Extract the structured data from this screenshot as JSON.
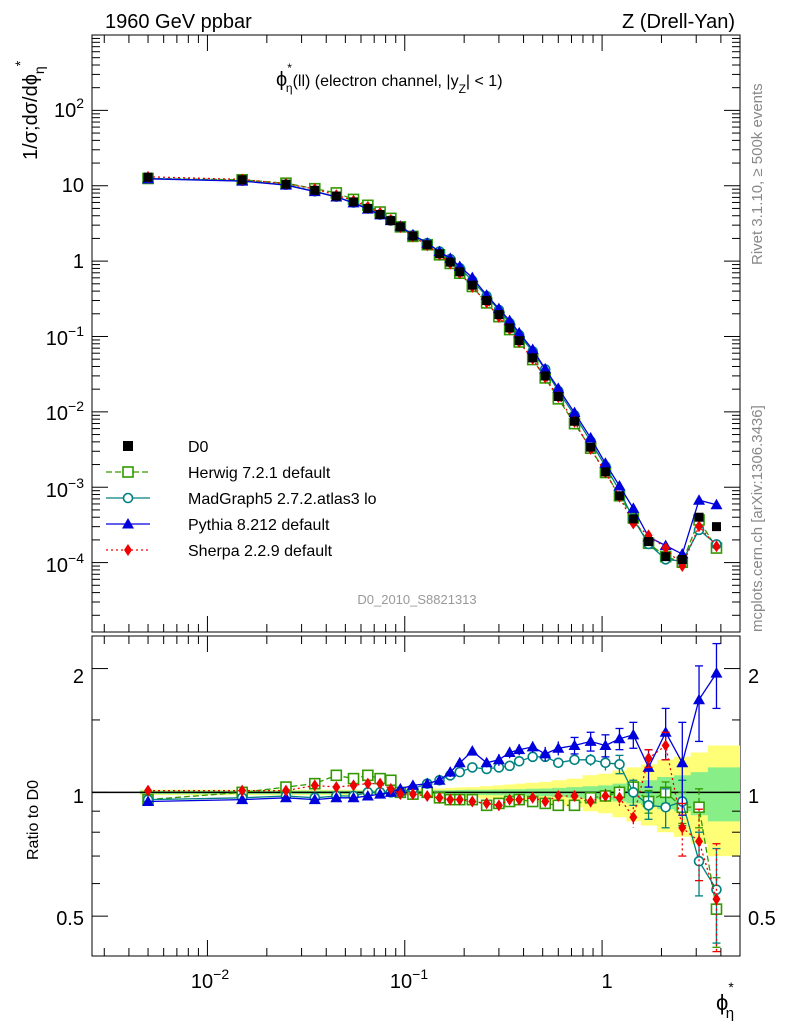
{
  "header": {
    "left": "1960 GeV ppbar",
    "right": "Z (Drell-Yan)"
  },
  "side_labels": {
    "rivet": "Rivet 3.1.10, ≥ 500k events",
    "mcplots": "mcplots.cern.ch [arXiv:1306.3436]"
  },
  "plot_label": {
    "phi": "ϕ",
    "star": "*",
    "eta": "η",
    "text1": "(ll) (electron channel, |y",
    "z": "Z",
    "text2": "| < 1)"
  },
  "ylabel_top": {
    "main": "1/σ;dσ/dϕ",
    "sub": "η",
    "star": "*"
  },
  "ylabel_bottom": "Ratio to D0",
  "xlabel": {
    "phi": "ϕ",
    "star": "*",
    "sub": "η"
  },
  "watermark": "D0_2010_S8821313",
  "ticks": {
    "top_y": [
      {
        "base": "10",
        "exp": "2"
      },
      {
        "text": "10"
      },
      {
        "text": "1"
      },
      {
        "base": "10",
        "exp": "−1"
      },
      {
        "base": "10",
        "exp": "−2"
      },
      {
        "base": "10",
        "exp": "−3"
      },
      {
        "base": "10",
        "exp": "−4"
      }
    ],
    "x": [
      {
        "base": "10",
        "exp": "−2"
      },
      {
        "base": "10",
        "exp": "−1"
      },
      {
        "text": "1"
      }
    ],
    "ratio_y": [
      "2",
      "1",
      "0.5"
    ]
  },
  "chart_data": {
    "type": "line",
    "x_scale": "log",
    "y_scale": "log",
    "xlim": [
      0.0026,
      5.0
    ],
    "ylim": [
      1.2e-05,
      1000
    ],
    "ratio_ylim": [
      0.4,
      2.4
    ],
    "x": [
      0.005,
      0.015,
      0.025,
      0.035,
      0.045,
      0.055,
      0.065,
      0.075,
      0.085,
      0.095,
      0.11,
      0.13,
      0.15,
      0.17,
      0.19,
      0.22,
      0.26,
      0.3,
      0.34,
      0.38,
      0.445,
      0.515,
      0.6,
      0.725,
      0.875,
      1.04,
      1.225,
      1.44,
      1.72,
      2.1,
      2.55,
      3.1,
      3.8
    ],
    "data_series": {
      "name": "D0",
      "color": "#000000",
      "values": [
        13.0,
        12.0,
        10.5,
        8.7,
        7.3,
        6.1,
        5.0,
        4.15,
        3.45,
        2.85,
        2.15,
        1.65,
        1.25,
        0.97,
        0.72,
        0.48,
        0.3,
        0.195,
        0.13,
        0.088,
        0.052,
        0.03,
        0.016,
        0.0075,
        0.0034,
        0.0016,
        0.00077,
        0.00038,
        0.00019,
        0.00012,
        0.00011,
        0.0004,
        0.0003
      ]
    },
    "band": {
      "stat": [
        0.01,
        0.01,
        0.01,
        0.01,
        0.01,
        0.01,
        0.01,
        0.01,
        0.01,
        0.01,
        0.012,
        0.012,
        0.012,
        0.012,
        0.014,
        0.015,
        0.015,
        0.016,
        0.018,
        0.018,
        0.02,
        0.022,
        0.025,
        0.03,
        0.035,
        0.04,
        0.05,
        0.06,
        0.07,
        0.09,
        0.1,
        0.12,
        0.15
      ],
      "total": [
        0.015,
        0.015,
        0.015,
        0.015,
        0.015,
        0.015,
        0.015,
        0.015,
        0.015,
        0.015,
        0.018,
        0.02,
        0.022,
        0.025,
        0.028,
        0.03,
        0.035,
        0.04,
        0.045,
        0.05,
        0.055,
        0.06,
        0.07,
        0.08,
        0.1,
        0.11,
        0.13,
        0.15,
        0.17,
        0.2,
        0.22,
        0.25,
        0.3
      ]
    },
    "series": [
      {
        "name": "Herwig 7.2.1 default",
        "color": "#339900",
        "marker": "open-square",
        "dash": "6,3",
        "ratio": [
          0.96,
          1.0,
          1.03,
          1.05,
          1.1,
          1.08,
          1.1,
          1.08,
          1.07,
          1.0,
          0.99,
          1.0,
          0.97,
          0.96,
          0.96,
          0.96,
          0.93,
          0.94,
          0.95,
          0.96,
          0.95,
          0.94,
          0.93,
          0.93,
          0.97,
          0.98,
          1.0,
          1.03,
          0.95,
          1.0,
          0.92,
          0.92,
          0.52
        ],
        "ratio_err": [
          0.01,
          0.01,
          0.01,
          0.01,
          0.01,
          0.01,
          0.01,
          0.01,
          0.01,
          0.01,
          0.01,
          0.01,
          0.01,
          0.01,
          0.01,
          0.01,
          0.01,
          0.01,
          0.01,
          0.01,
          0.01,
          0.01,
          0.01,
          0.02,
          0.03,
          0.03,
          0.04,
          0.05,
          0.06,
          0.06,
          0.08,
          0.1,
          0.1
        ]
      },
      {
        "name": "MadGraph5 2.7.2.atlas3 lo",
        "color": "#008080",
        "marker": "open-circle",
        "dash": "",
        "ratio": [
          0.96,
          0.97,
          0.98,
          0.97,
          0.98,
          0.98,
          1.0,
          1.0,
          1.0,
          1.0,
          1.02,
          1.05,
          1.07,
          1.1,
          1.12,
          1.15,
          1.14,
          1.15,
          1.16,
          1.19,
          1.22,
          1.22,
          1.18,
          1.2,
          1.2,
          1.18,
          1.17,
          1.0,
          0.93,
          0.92,
          0.95,
          0.68,
          0.58
        ],
        "ratio_err": [
          0.01,
          0.01,
          0.01,
          0.01,
          0.01,
          0.01,
          0.01,
          0.01,
          0.01,
          0.01,
          0.01,
          0.01,
          0.01,
          0.01,
          0.01,
          0.02,
          0.02,
          0.02,
          0.02,
          0.02,
          0.02,
          0.02,
          0.03,
          0.03,
          0.04,
          0.05,
          0.06,
          0.07,
          0.07,
          0.1,
          0.12,
          0.12,
          0.15
        ]
      },
      {
        "name": "Pythia 8.212 default",
        "color": "#0000dd",
        "marker": "filled-triangle",
        "dash": "",
        "ratio": [
          0.95,
          0.96,
          0.97,
          0.96,
          0.97,
          0.97,
          0.98,
          0.99,
          1.0,
          1.02,
          1.04,
          1.05,
          1.07,
          1.12,
          1.18,
          1.26,
          1.18,
          1.2,
          1.25,
          1.27,
          1.29,
          1.24,
          1.28,
          1.3,
          1.33,
          1.3,
          1.35,
          1.38,
          1.15,
          1.4,
          1.18,
          1.68,
          1.95
        ],
        "ratio_err": [
          0.01,
          0.01,
          0.01,
          0.01,
          0.01,
          0.01,
          0.01,
          0.01,
          0.01,
          0.01,
          0.02,
          0.02,
          0.02,
          0.03,
          0.03,
          0.03,
          0.03,
          0.04,
          0.04,
          0.04,
          0.04,
          0.05,
          0.05,
          0.06,
          0.07,
          0.08,
          0.08,
          0.1,
          0.12,
          0.2,
          0.3,
          0.35,
          0.35
        ]
      },
      {
        "name": "Sherpa 2.2.9 default",
        "color": "#ee0000",
        "marker": "filled-diamond",
        "dash": "2,3",
        "ratio": [
          1.01,
          1.01,
          1.01,
          1.04,
          1.03,
          1.04,
          1.05,
          1.05,
          1.02,
          0.99,
          0.99,
          0.98,
          0.97,
          0.96,
          0.96,
          0.95,
          0.94,
          0.93,
          0.96,
          0.96,
          0.97,
          0.95,
          0.98,
          0.98,
          0.95,
          0.98,
          0.97,
          0.87,
          1.21,
          1.3,
          0.82,
          0.76,
          0.55
        ],
        "ratio_err": [
          0.01,
          0.01,
          0.01,
          0.01,
          0.01,
          0.01,
          0.01,
          0.01,
          0.01,
          0.01,
          0.01,
          0.01,
          0.01,
          0.01,
          0.01,
          0.01,
          0.01,
          0.01,
          0.02,
          0.02,
          0.02,
          0.02,
          0.02,
          0.03,
          0.03,
          0.04,
          0.05,
          0.05,
          0.06,
          0.1,
          0.12,
          0.15,
          0.2
        ]
      }
    ],
    "legend_position": "left, lower half of top panel"
  }
}
